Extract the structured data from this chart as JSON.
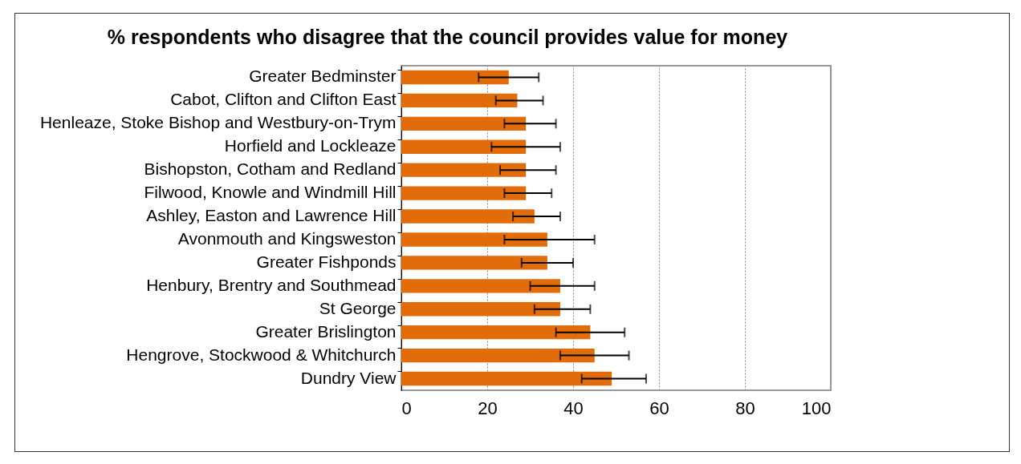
{
  "chart_data": {
    "type": "bar",
    "orientation": "horizontal",
    "title": "% respondents who disagree that the council provides value for money",
    "categories": [
      "Greater Bedminster",
      "Cabot, Clifton and Clifton East",
      "Henleaze, Stoke Bishop and Westbury-on-Trym",
      "Horfield and Lockleaze",
      "Bishopston, Cotham and Redland",
      "Filwood, Knowle and Windmill Hill",
      "Ashley, Easton and Lawrence Hill",
      "Avonmouth and Kingsweston",
      "Greater Fishponds",
      "Henbury, Brentry and Southmead",
      "St George",
      "Greater Brislington",
      "Hengrove, Stockwood & Whitchurch",
      "Dundry View"
    ],
    "values": [
      25,
      27,
      29,
      29,
      29,
      29,
      31,
      34,
      34,
      37,
      37,
      44,
      45,
      49
    ],
    "errors": [
      [
        18,
        32
      ],
      [
        22,
        33
      ],
      [
        24,
        36
      ],
      [
        21,
        37
      ],
      [
        23,
        36
      ],
      [
        24,
        35
      ],
      [
        26,
        37
      ],
      [
        24,
        45
      ],
      [
        28,
        40
      ],
      [
        30,
        45
      ],
      [
        31,
        44
      ],
      [
        36,
        52
      ],
      [
        37,
        53
      ],
      [
        42,
        57
      ]
    ],
    "color": "#e36c0a",
    "xlim": [
      0,
      100
    ],
    "xticks": [
      0,
      20,
      40,
      60,
      80,
      100
    ],
    "grid": "x"
  }
}
